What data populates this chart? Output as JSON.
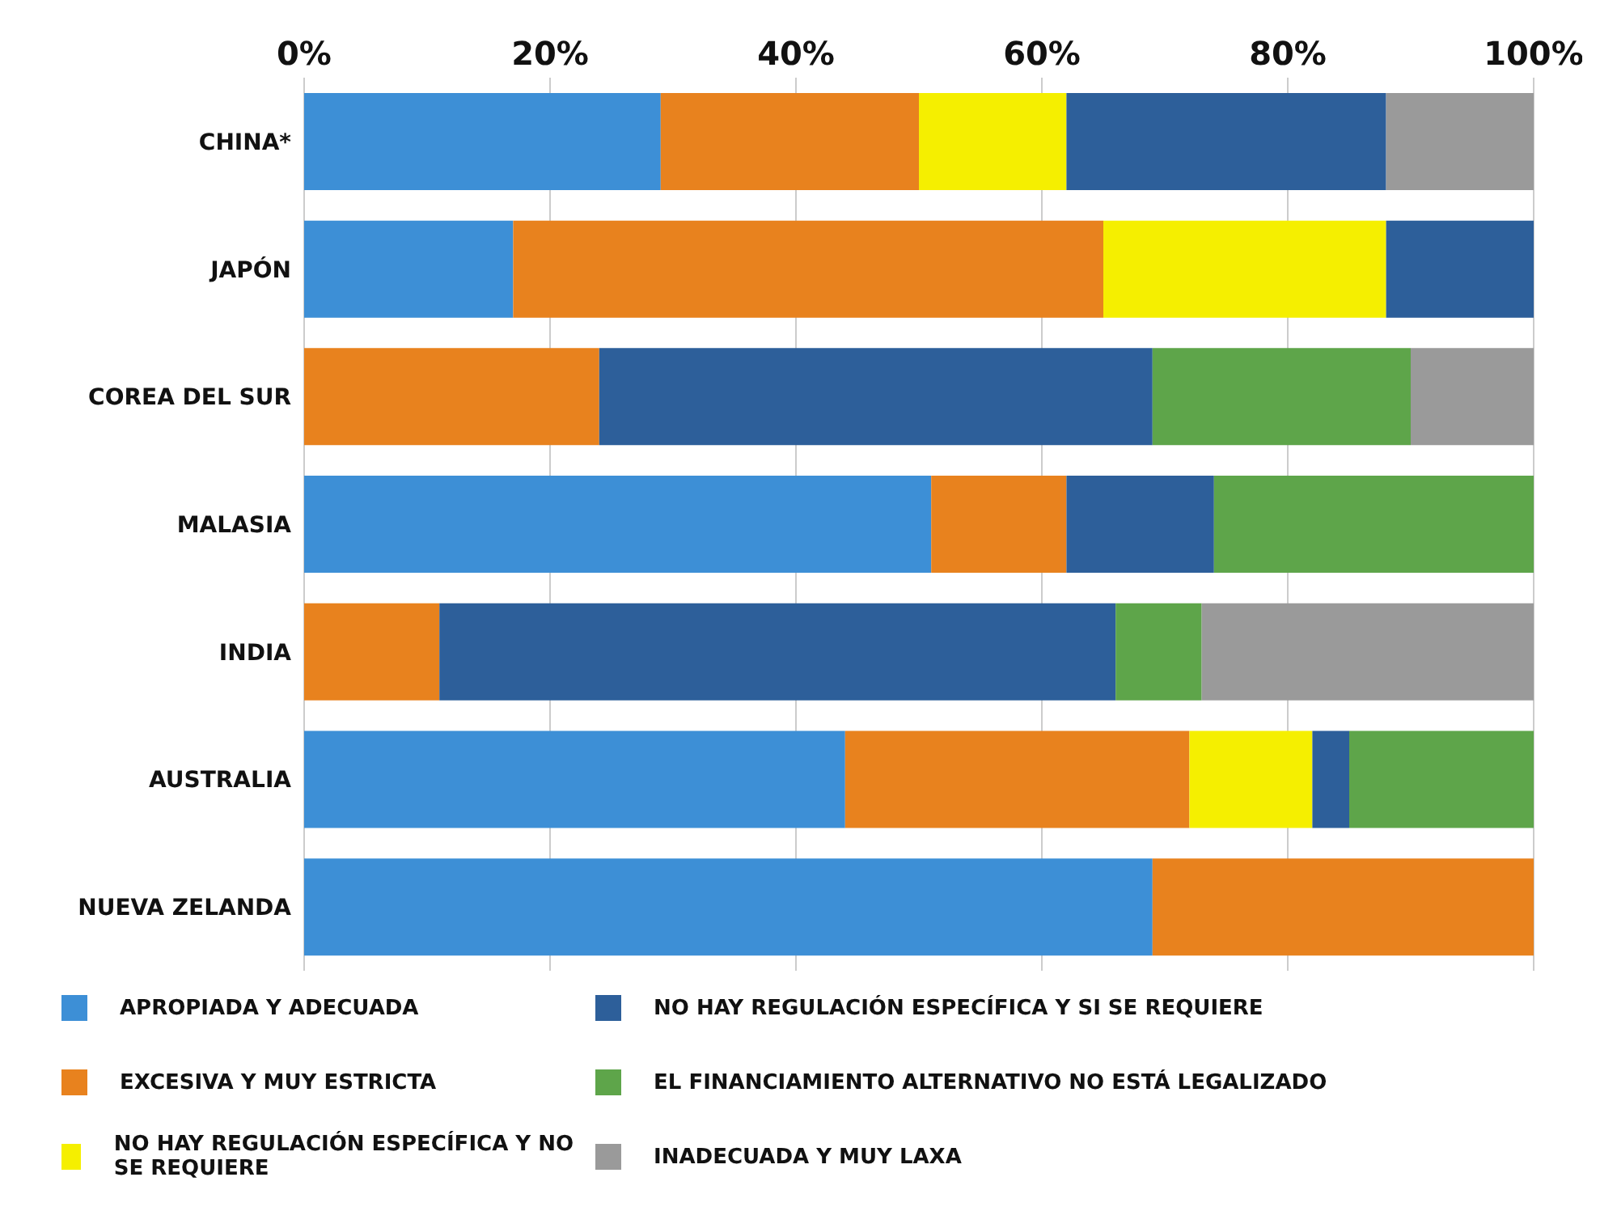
{
  "chart_data": {
    "type": "bar",
    "orientation": "horizontal",
    "stacked": true,
    "categories": [
      "CHINA*",
      "JAPÓN",
      "COREA DEL SUR",
      "MALASIA",
      "INDIA",
      "AUSTRALIA",
      "NUEVA ZELANDA"
    ],
    "series": [
      {
        "name": "APROPIADA Y ADECUADA",
        "color": "#3d8fd6",
        "values": [
          29,
          17,
          0,
          51,
          0,
          44,
          69
        ]
      },
      {
        "name": "EXCESIVA Y MUY ESTRICTA",
        "color": "#e8821e",
        "values": [
          21,
          48,
          24,
          11,
          11,
          28,
          31
        ]
      },
      {
        "name": "NO HAY REGULACIÓN ESPECÍFICA Y NO SE REQUIERE",
        "color": "#f5ef00",
        "values": [
          12,
          23,
          0,
          0,
          0,
          10,
          0
        ]
      },
      {
        "name": "NO HAY REGULACIÓN ESPECÍFICA Y SI SE REQUIERE",
        "color": "#2d5f9a",
        "values": [
          26,
          12,
          45,
          12,
          55,
          3,
          0
        ]
      },
      {
        "name": "EL FINANCIAMIENTO ALTERNATIVO NO ESTÁ LEGALIZADO",
        "color": "#5ea54a",
        "values": [
          0,
          0,
          21,
          26,
          7,
          15,
          0
        ]
      },
      {
        "name": "INADECUADA Y MUY LAXA",
        "color": "#9a9a9a",
        "values": [
          12,
          0,
          10,
          0,
          27,
          0,
          0
        ]
      }
    ],
    "xlim": [
      0,
      100
    ],
    "xticks": [
      {
        "value": 0,
        "label": "0%"
      },
      {
        "value": 20,
        "label": "20%"
      },
      {
        "value": 40,
        "label": "40%"
      },
      {
        "value": 60,
        "label": "60%"
      },
      {
        "value": 80,
        "label": "80%"
      },
      {
        "value": 100,
        "label": "100%"
      }
    ],
    "grid": "x",
    "legend": "bottom"
  }
}
